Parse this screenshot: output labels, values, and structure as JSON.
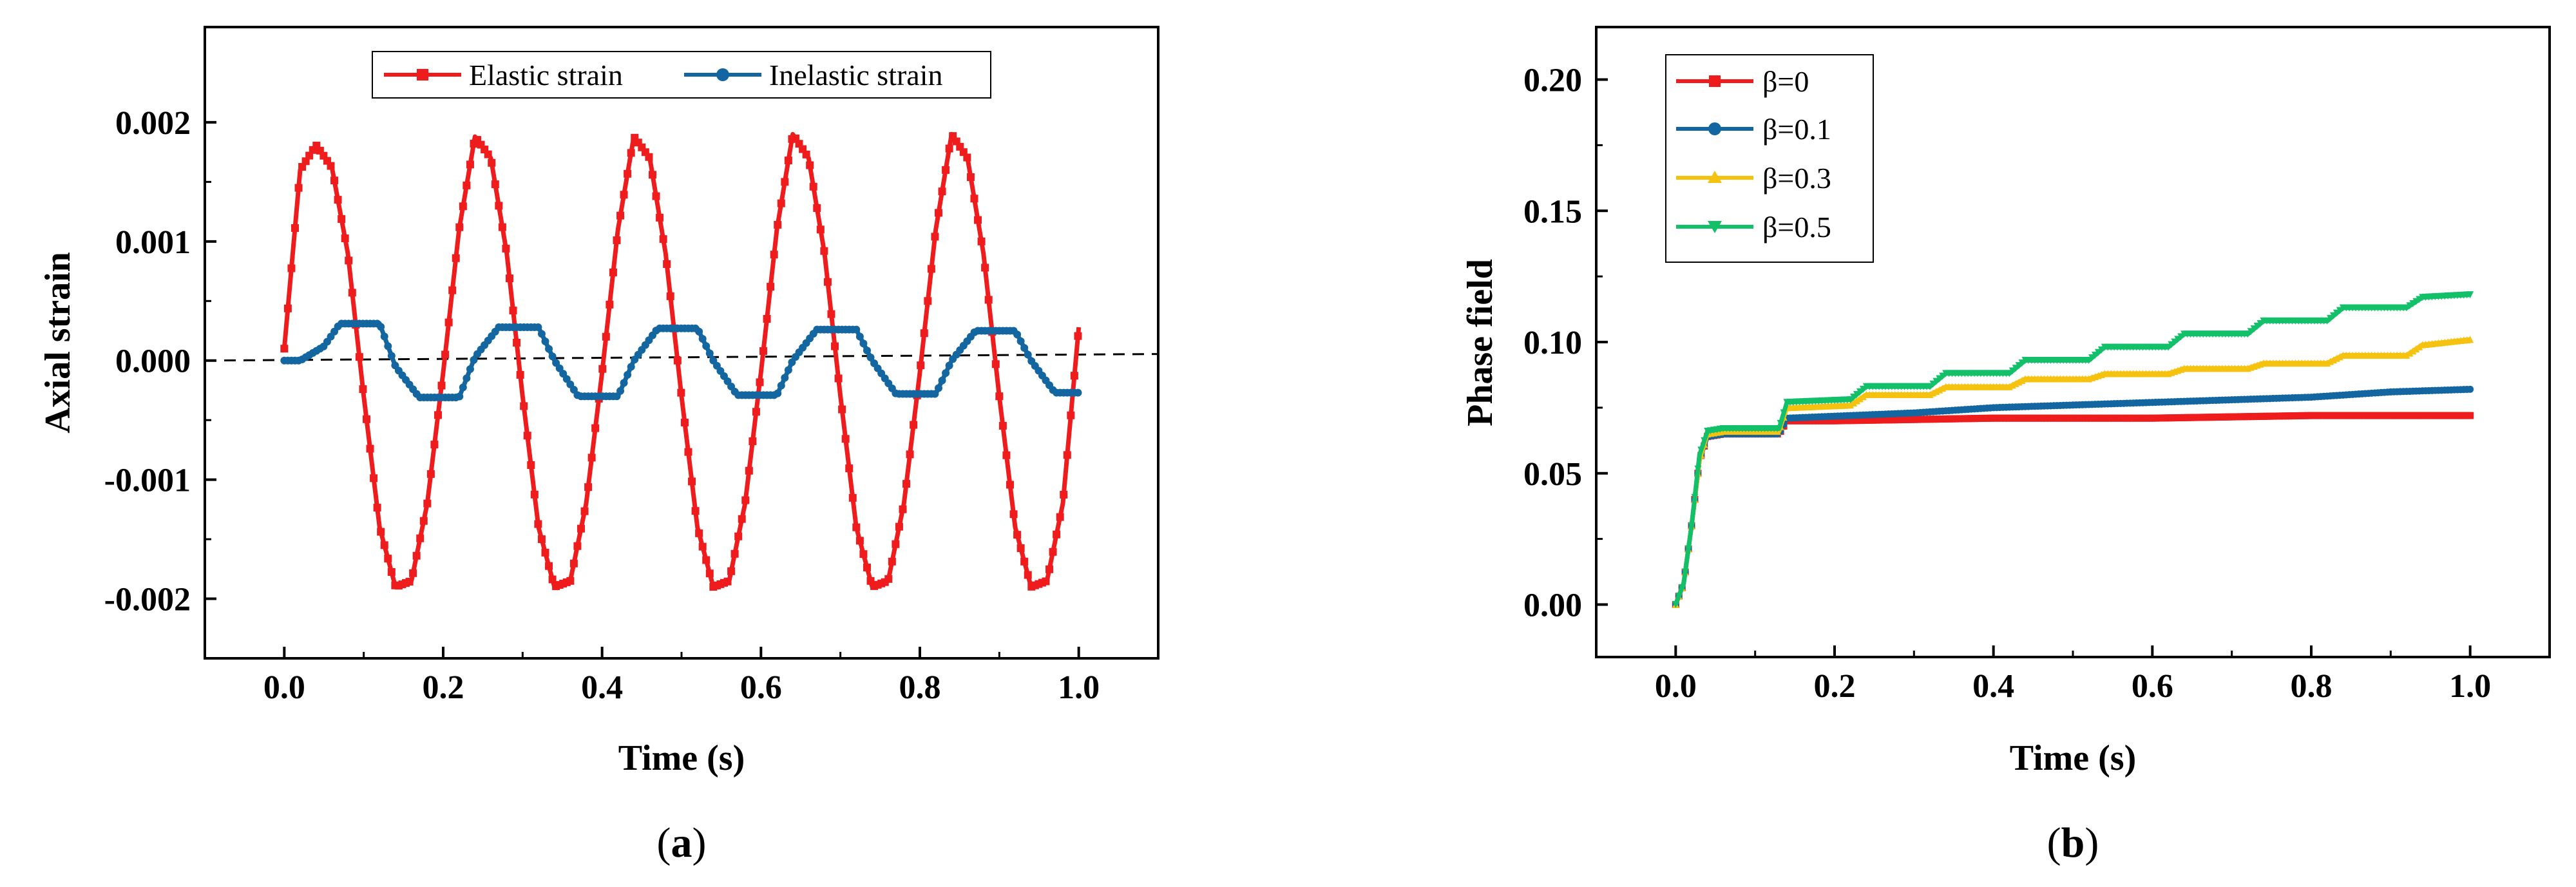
{
  "figure": {
    "panels": [
      "(a)",
      "(b)"
    ]
  },
  "chart_data": [
    {
      "type": "line",
      "panel_label": "a",
      "title": "",
      "xlabel": "Time (s)",
      "ylabel": "Axial strain",
      "xlim": [
        -0.1,
        1.1
      ],
      "ylim": [
        -0.0025,
        0.0028
      ],
      "xticks": [
        0.0,
        0.2,
        0.4,
        0.6,
        0.8,
        1.0
      ],
      "xtick_labels": [
        "0.0",
        "0.2",
        "0.4",
        "0.6",
        "0.8",
        "1.0"
      ],
      "yticks": [
        -0.002,
        -0.001,
        0.0,
        0.001,
        0.002
      ],
      "ytick_labels": [
        "-0.002",
        "-0.001",
        "0.000",
        "0.001",
        "0.002"
      ],
      "legend_position": "top-center",
      "reference_line": {
        "style": "dashed",
        "y_start": 0.0,
        "y_end": 5.5e-05
      },
      "series": [
        {
          "name": "Elastic strain",
          "color": "#ee1c1c",
          "marker": "square",
          "x": [
            0.0,
            0.02,
            0.04,
            0.06,
            0.08,
            0.1,
            0.12,
            0.14,
            0.16,
            0.18,
            0.2,
            0.22,
            0.24,
            0.26,
            0.28,
            0.3,
            0.32,
            0.34,
            0.36,
            0.38,
            0.4,
            0.42,
            0.44,
            0.46,
            0.48,
            0.5,
            0.52,
            0.54,
            0.56,
            0.58,
            0.6,
            0.62,
            0.64,
            0.66,
            0.68,
            0.7,
            0.72,
            0.74,
            0.76,
            0.78,
            0.8,
            0.82,
            0.84,
            0.86,
            0.88,
            0.9,
            0.92,
            0.94,
            0.96,
            0.98,
            1.0
          ],
          "y": [
            0.0001,
            0.0016,
            0.00181,
            0.00162,
            0.0009,
            -0.0003,
            -0.0014,
            -0.0019,
            -0.00185,
            -0.0012,
            -0.0001,
            0.0011,
            0.00188,
            0.0017,
            0.0009,
            -0.0003,
            -0.0014,
            -0.0019,
            -0.00185,
            -0.0012,
            -0.0001,
            0.0011,
            0.00188,
            0.0017,
            0.0009,
            -0.0003,
            -0.0014,
            -0.0019,
            -0.00185,
            -0.0012,
            -0.0001,
            0.0011,
            0.0019,
            0.0017,
            0.0009,
            -0.0003,
            -0.0014,
            -0.0019,
            -0.00185,
            -0.0012,
            -0.0001,
            0.0011,
            0.0019,
            0.0017,
            0.0009,
            -0.0003,
            -0.0014,
            -0.0019,
            -0.00185,
            -0.0012,
            0.00028
          ]
        },
        {
          "name": "Inelastic strain",
          "color": "#1366a0",
          "marker": "circle",
          "x": [
            0.0,
            0.02,
            0.05,
            0.07,
            0.12,
            0.14,
            0.17,
            0.22,
            0.24,
            0.27,
            0.32,
            0.34,
            0.37,
            0.42,
            0.44,
            0.47,
            0.52,
            0.54,
            0.57,
            0.62,
            0.64,
            0.67,
            0.72,
            0.74,
            0.77,
            0.82,
            0.84,
            0.87,
            0.92,
            0.94,
            0.97,
            1.0
          ],
          "y": [
            0.0,
            0.0,
            0.00012,
            0.00031,
            0.00031,
            -5e-05,
            -0.00031,
            -0.00031,
            3e-05,
            0.00028,
            0.00028,
            0.0,
            -0.0003,
            -0.0003,
            0.0,
            0.00027,
            0.00027,
            0.0,
            -0.00029,
            -0.00029,
            0.0,
            0.00026,
            0.00026,
            0.0,
            -0.00028,
            -0.00028,
            0.0,
            0.00025,
            0.00025,
            0.0,
            -0.00027,
            -0.00027
          ]
        }
      ]
    },
    {
      "type": "line",
      "panel_label": "b",
      "title": "",
      "xlabel": "Time (s)",
      "ylabel": "Phase field",
      "xlim": [
        -0.1,
        1.1
      ],
      "ylim": [
        -0.02,
        0.22
      ],
      "xticks": [
        0.0,
        0.2,
        0.4,
        0.6,
        0.8,
        1.0
      ],
      "xtick_labels": [
        "0.0",
        "0.2",
        "0.4",
        "0.6",
        "0.8",
        "1.0"
      ],
      "yticks": [
        0.0,
        0.05,
        0.1,
        0.15,
        0.2
      ],
      "ytick_labels": [
        "0.00",
        "0.05",
        "0.10",
        "0.15",
        "0.20"
      ],
      "legend_position": "top-left",
      "series": [
        {
          "name": "β=0",
          "color": "#ee1c1c",
          "marker": "square",
          "x": [
            0.0,
            0.01,
            0.02,
            0.03,
            0.04,
            0.06,
            0.13,
            0.14,
            0.2,
            0.4,
            0.6,
            0.8,
            1.0
          ],
          "y": [
            0.0,
            0.008,
            0.03,
            0.055,
            0.064,
            0.065,
            0.065,
            0.07,
            0.07,
            0.071,
            0.071,
            0.072,
            0.072
          ]
        },
        {
          "name": "β=0.1",
          "color": "#1366a0",
          "marker": "circle",
          "x": [
            0.0,
            0.01,
            0.02,
            0.03,
            0.04,
            0.06,
            0.13,
            0.14,
            0.22,
            0.3,
            0.4,
            0.5,
            0.6,
            0.7,
            0.8,
            0.9,
            1.0
          ],
          "y": [
            0.0,
            0.008,
            0.03,
            0.055,
            0.064,
            0.065,
            0.065,
            0.071,
            0.072,
            0.073,
            0.075,
            0.076,
            0.077,
            0.078,
            0.079,
            0.081,
            0.082
          ]
        },
        {
          "name": "β=0.3",
          "color": "#f5c20f",
          "marker": "triangle-up",
          "x": [
            0.0,
            0.01,
            0.02,
            0.03,
            0.04,
            0.06,
            0.13,
            0.14,
            0.22,
            0.24,
            0.32,
            0.34,
            0.42,
            0.44,
            0.52,
            0.54,
            0.62,
            0.64,
            0.72,
            0.74,
            0.82,
            0.84,
            0.92,
            0.94,
            1.0
          ],
          "y": [
            0.0,
            0.008,
            0.03,
            0.055,
            0.065,
            0.066,
            0.066,
            0.075,
            0.076,
            0.08,
            0.08,
            0.083,
            0.083,
            0.086,
            0.086,
            0.088,
            0.088,
            0.09,
            0.09,
            0.092,
            0.092,
            0.095,
            0.095,
            0.099,
            0.101
          ]
        },
        {
          "name": "β=0.5",
          "color": "#13c06a",
          "marker": "triangle-down",
          "x": [
            0.0,
            0.01,
            0.02,
            0.03,
            0.04,
            0.06,
            0.13,
            0.14,
            0.22,
            0.24,
            0.32,
            0.34,
            0.42,
            0.44,
            0.52,
            0.54,
            0.62,
            0.64,
            0.72,
            0.74,
            0.82,
            0.84,
            0.92,
            0.94,
            1.0
          ],
          "y": [
            0.0,
            0.008,
            0.03,
            0.057,
            0.066,
            0.067,
            0.067,
            0.077,
            0.078,
            0.083,
            0.083,
            0.088,
            0.088,
            0.093,
            0.093,
            0.098,
            0.098,
            0.103,
            0.103,
            0.108,
            0.108,
            0.113,
            0.113,
            0.117,
            0.118
          ]
        }
      ]
    }
  ]
}
